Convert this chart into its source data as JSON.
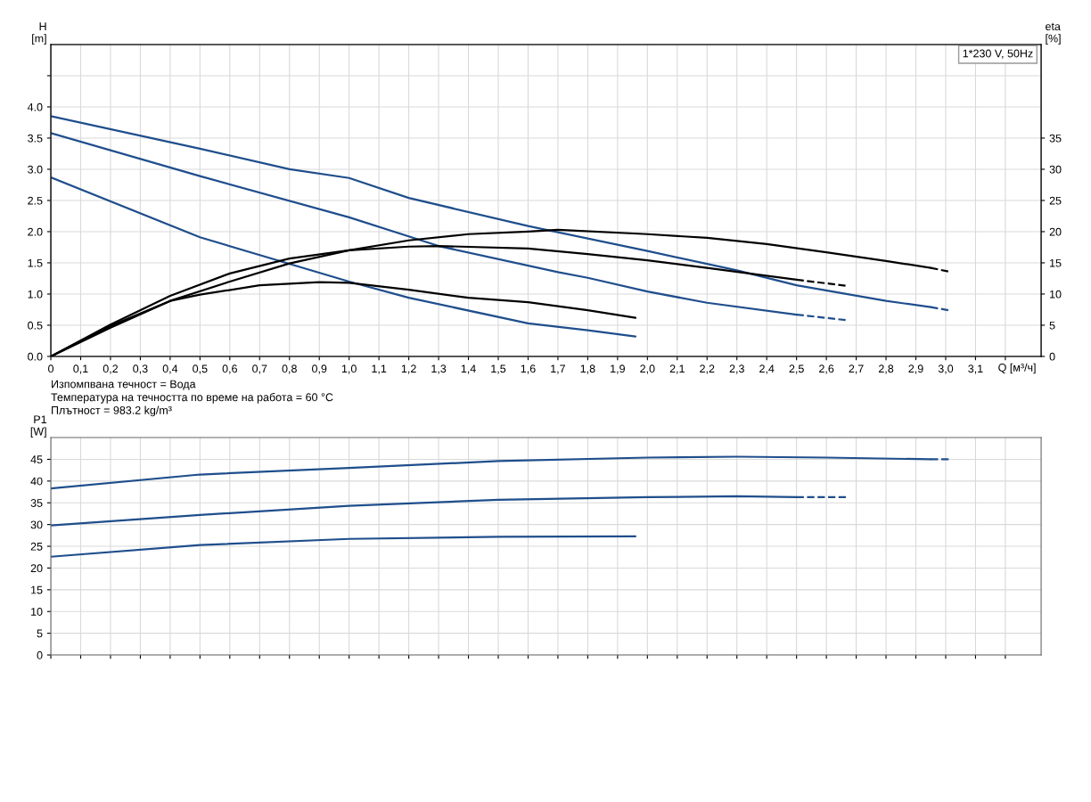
{
  "chart_data": [
    {
      "type": "line",
      "title": "1*230 V, 50Hz",
      "xlabel": "Q [м³/ч]",
      "ylabel": "H\n[m]",
      "y2label": "eta\n[%]",
      "annotations": [
        "Изпомпвана течност = Вода",
        "Температура на течността по време на работа = 60 °C",
        "Плътност = 983.2 kg/m³"
      ],
      "xlim": [
        0,
        3.32
      ],
      "xticks": [
        {
          "value": 0,
          "label": "0"
        },
        {
          "value": 0.1,
          "label": "0,1"
        },
        {
          "value": 0.2,
          "label": "0,2"
        },
        {
          "value": 0.3,
          "label": "0,3"
        },
        {
          "value": 0.4,
          "label": "0,4"
        },
        {
          "value": 0.5,
          "label": "0,5"
        },
        {
          "value": 0.6,
          "label": "0,6"
        },
        {
          "value": 0.7,
          "label": "0,7"
        },
        {
          "value": 0.8,
          "label": "0,8"
        },
        {
          "value": 0.9,
          "label": "0,9"
        },
        {
          "value": 1.0,
          "label": "1,0"
        },
        {
          "value": 1.1,
          "label": "1,1"
        },
        {
          "value": 1.2,
          "label": "1,2"
        },
        {
          "value": 1.3,
          "label": "1,3"
        },
        {
          "value": 1.4,
          "label": "1,4"
        },
        {
          "value": 1.5,
          "label": "1,5"
        },
        {
          "value": 1.6,
          "label": "1,6"
        },
        {
          "value": 1.7,
          "label": "1,7"
        },
        {
          "value": 1.8,
          "label": "1,8"
        },
        {
          "value": 1.9,
          "label": "1,9"
        },
        {
          "value": 2.0,
          "label": "2,0"
        },
        {
          "value": 2.1,
          "label": "2,1"
        },
        {
          "value": 2.2,
          "label": "2,2"
        },
        {
          "value": 2.3,
          "label": "2,3"
        },
        {
          "value": 2.4,
          "label": "2,4"
        },
        {
          "value": 2.5,
          "label": "2,5"
        },
        {
          "value": 2.6,
          "label": "2,6"
        },
        {
          "value": 2.7,
          "label": "2,7"
        },
        {
          "value": 2.8,
          "label": "2,8"
        },
        {
          "value": 2.9,
          "label": "2,9"
        },
        {
          "value": 3.0,
          "label": "3,0"
        },
        {
          "value": 3.1,
          "label": "3,1"
        },
        {
          "value": 3.2,
          "label": null
        }
      ],
      "ylim": [
        0,
        5
      ],
      "yticks": [
        {
          "value": 0,
          "label": "0.0"
        },
        {
          "value": 0.5,
          "label": "0.5"
        },
        {
          "value": 1.0,
          "label": "1.0"
        },
        {
          "value": 1.5,
          "label": "1.5"
        },
        {
          "value": 2.0,
          "label": "2.0"
        },
        {
          "value": 2.5,
          "label": "2.5"
        },
        {
          "value": 3.0,
          "label": "3.0"
        },
        {
          "value": 3.5,
          "label": "3.5"
        },
        {
          "value": 4.0,
          "label": "4.0"
        },
        {
          "value": 4.5,
          "label": null
        }
      ],
      "y2lim": [
        0,
        50
      ],
      "y2ticks": [
        0,
        5,
        10,
        15,
        20,
        25,
        30,
        35
      ],
      "grid": true,
      "legend": false,
      "series": [
        {
          "color": "#1f4e8c",
          "line_style": "solid",
          "x": [
            0,
            0.5,
            0.8,
            1.0,
            1.2,
            1.6,
            2.0,
            2.3,
            2.5,
            2.8,
            2.95
          ],
          "values": [
            3.85,
            3.33,
            3.0,
            2.86,
            2.54,
            2.09,
            1.69,
            1.38,
            1.14,
            0.89,
            0.79
          ]
        },
        {
          "color": "#1f4e8c",
          "line_style": "dashed",
          "x": [
            2.95,
            3.01
          ],
          "values": [
            0.79,
            0.74
          ]
        },
        {
          "color": "#1f4e8c",
          "line_style": "solid",
          "x": [
            0,
            0.5,
            1.0,
            1.3,
            1.7,
            1.8,
            2.0,
            2.2,
            2.5
          ],
          "values": [
            3.58,
            2.89,
            2.23,
            1.77,
            1.35,
            1.26,
            1.04,
            0.86,
            0.67
          ]
        },
        {
          "color": "#1f4e8c",
          "line_style": "dashed",
          "x": [
            2.5,
            2.67
          ],
          "values": [
            0.67,
            0.58
          ]
        },
        {
          "color": "#1f4e8c",
          "line_style": "solid",
          "x": [
            0,
            0.5,
            1.0,
            1.2,
            1.6,
            1.8,
            1.96
          ],
          "values": [
            2.87,
            1.91,
            1.2,
            0.94,
            0.53,
            0.42,
            0.32
          ]
        },
        {
          "color": "#000000",
          "line_style": "solid",
          "axis": "y2",
          "x": [
            0,
            0.2,
            0.4,
            0.6,
            0.8,
            1.0,
            1.2,
            1.4,
            1.6,
            1.7,
            2.0,
            2.2,
            2.4,
            2.6,
            2.8,
            2.95
          ],
          "values": [
            0,
            4.6,
            8.9,
            12,
            14.9,
            17,
            18.6,
            19.6,
            20.0,
            20.3,
            19.6,
            19.0,
            18.0,
            16.7,
            15.3,
            14.2
          ]
        },
        {
          "color": "#000000",
          "line_style": "dashed",
          "axis": "y2",
          "x": [
            2.95,
            3.01
          ],
          "values": [
            14.2,
            13.6
          ]
        },
        {
          "color": "#000000",
          "line_style": "solid",
          "axis": "y2",
          "x": [
            0,
            0.2,
            0.4,
            0.6,
            0.8,
            1.0,
            1.2,
            1.3,
            1.6,
            1.8,
            2.0,
            2.2,
            2.5
          ],
          "values": [
            0,
            5.1,
            9.7,
            13.3,
            15.7,
            17.0,
            17.6,
            17.7,
            17.3,
            16.4,
            15.4,
            14.2,
            12.3
          ]
        },
        {
          "color": "#000000",
          "line_style": "dashed",
          "axis": "y2",
          "x": [
            2.5,
            2.67
          ],
          "values": [
            12.3,
            11.3
          ]
        },
        {
          "color": "#000000",
          "line_style": "solid",
          "axis": "y2",
          "x": [
            0,
            0.2,
            0.4,
            0.5,
            0.7,
            0.9,
            1.0,
            1.2,
            1.4,
            1.6,
            1.8,
            1.96
          ],
          "values": [
            0,
            4.9,
            8.9,
            9.9,
            11.4,
            11.9,
            11.8,
            10.7,
            9.4,
            8.7,
            7.4,
            6.2
          ]
        }
      ]
    },
    {
      "type": "line",
      "ylabel": "P1\n[W]",
      "xlim": [
        0,
        3.32
      ],
      "xticks": [
        0,
        0.1,
        0.2,
        0.3,
        0.4,
        0.5,
        0.6,
        0.7,
        0.8,
        0.9,
        1.0,
        1.1,
        1.2,
        1.3,
        1.4,
        1.5,
        1.6,
        1.7,
        1.8,
        1.9,
        2.0,
        2.1,
        2.2,
        2.3,
        2.4,
        2.5,
        2.6,
        2.7,
        2.8,
        2.9,
        3.0,
        3.1,
        3.2
      ],
      "ylim": [
        0,
        50
      ],
      "yticks": [
        0,
        5,
        10,
        15,
        20,
        25,
        30,
        35,
        40,
        45
      ],
      "tick_labels": "y",
      "grid": true,
      "legend": false,
      "series": [
        {
          "color": "#1f4e8c",
          "line_style": "solid",
          "x": [
            0,
            0.5,
            1.0,
            1.5,
            2.0,
            2.3,
            2.6,
            2.95
          ],
          "values": [
            38.3,
            41.5,
            43.0,
            44.6,
            45.4,
            45.6,
            45.4,
            45.0
          ]
        },
        {
          "color": "#1f4e8c",
          "line_style": "dashed",
          "x": [
            2.95,
            3.01
          ],
          "values": [
            45.0,
            45.0
          ]
        },
        {
          "color": "#1f4e8c",
          "line_style": "solid",
          "x": [
            0,
            0.5,
            1.0,
            1.5,
            2.0,
            2.3,
            2.5
          ],
          "values": [
            29.8,
            32.2,
            34.3,
            35.7,
            36.3,
            36.5,
            36.3
          ]
        },
        {
          "color": "#1f4e8c",
          "line_style": "dashed",
          "x": [
            2.5,
            2.67
          ],
          "values": [
            36.3,
            36.3
          ]
        },
        {
          "color": "#1f4e8c",
          "line_style": "solid",
          "x": [
            0,
            0.5,
            1.0,
            1.5,
            1.96
          ],
          "values": [
            22.6,
            25.3,
            26.7,
            27.2,
            27.3
          ]
        }
      ]
    }
  ]
}
